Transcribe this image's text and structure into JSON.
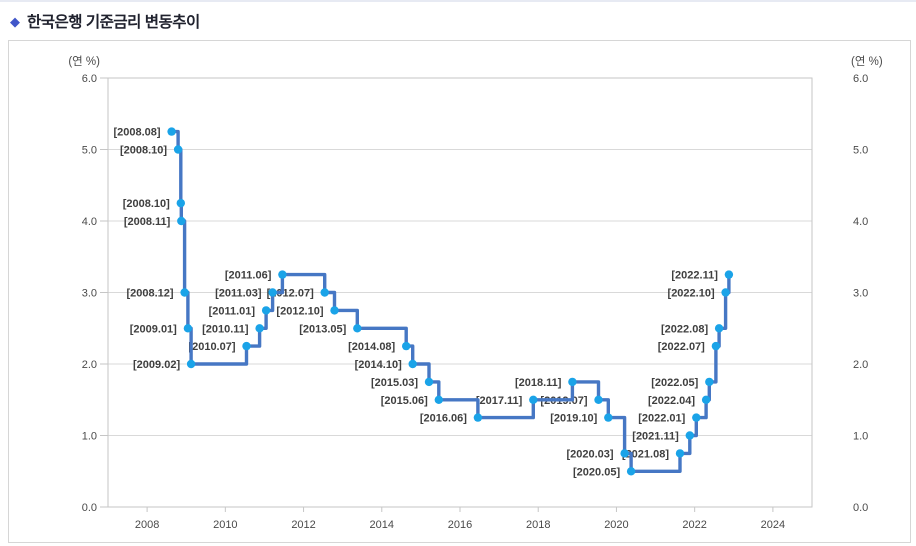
{
  "page": {
    "title": "한국은행 기준금리 변동추이",
    "title_bullet": "◆"
  },
  "chart_data": {
    "type": "line",
    "step": true,
    "title": "한국은행 기준금리 변동추이",
    "y_unit_label_left": "(연 %)",
    "y_unit_label_right": "(연 %)",
    "xlim": [
      2007,
      2025
    ],
    "ylim": [
      0,
      6
    ],
    "xticks": [
      2008,
      2010,
      2012,
      2014,
      2016,
      2018,
      2020,
      2022,
      2024
    ],
    "yticks": [
      0.0,
      1.0,
      2.0,
      3.0,
      4.0,
      5.0,
      6.0
    ],
    "grid": "horizontal",
    "legend": "none",
    "point_label_format": "[date]",
    "series": [
      {
        "points": [
          {
            "date": "2008.08",
            "rate": 5.25
          },
          {
            "date": "2008.10",
            "rate": 5.0
          },
          {
            "date": "2008.10",
            "rate": 4.25
          },
          {
            "date": "2008.11",
            "rate": 4.0
          },
          {
            "date": "2008.12",
            "rate": 3.0
          },
          {
            "date": "2009.01",
            "rate": 2.5
          },
          {
            "date": "2009.02",
            "rate": 2.0
          },
          {
            "date": "2010.07",
            "rate": 2.25
          },
          {
            "date": "2010.11",
            "rate": 2.5
          },
          {
            "date": "2011.01",
            "rate": 2.75
          },
          {
            "date": "2011.03",
            "rate": 3.0
          },
          {
            "date": "2011.06",
            "rate": 3.25
          },
          {
            "date": "2012.07",
            "rate": 3.0
          },
          {
            "date": "2012.10",
            "rate": 2.75
          },
          {
            "date": "2013.05",
            "rate": 2.5
          },
          {
            "date": "2014.08",
            "rate": 2.25
          },
          {
            "date": "2014.10",
            "rate": 2.0
          },
          {
            "date": "2015.03",
            "rate": 1.75
          },
          {
            "date": "2015.06",
            "rate": 1.5
          },
          {
            "date": "2016.06",
            "rate": 1.25
          },
          {
            "date": "2017.11",
            "rate": 1.5
          },
          {
            "date": "2018.11",
            "rate": 1.75
          },
          {
            "date": "2019.07",
            "rate": 1.5
          },
          {
            "date": "2019.10",
            "rate": 1.25
          },
          {
            "date": "2020.03",
            "rate": 0.75
          },
          {
            "date": "2020.05",
            "rate": 0.5
          },
          {
            "date": "2021.08",
            "rate": 0.75
          },
          {
            "date": "2021.11",
            "rate": 1.0
          },
          {
            "date": "2022.01",
            "rate": 1.25
          },
          {
            "date": "2022.04",
            "rate": 1.5
          },
          {
            "date": "2022.05",
            "rate": 1.75
          },
          {
            "date": "2022.07",
            "rate": 2.25
          },
          {
            "date": "2022.08",
            "rate": 2.5
          },
          {
            "date": "2022.10",
            "rate": 3.0
          },
          {
            "date": "2022.11",
            "rate": 3.25
          }
        ]
      }
    ],
    "colors": {
      "line": "#4677c4",
      "marker": "#1aa3e8",
      "grid": "#d9d9d9",
      "frame": "#c6c6c6",
      "point_label": "#3f3f3f",
      "tick_label": "#4a4a4a",
      "title_bullet": "#4056c9"
    }
  }
}
